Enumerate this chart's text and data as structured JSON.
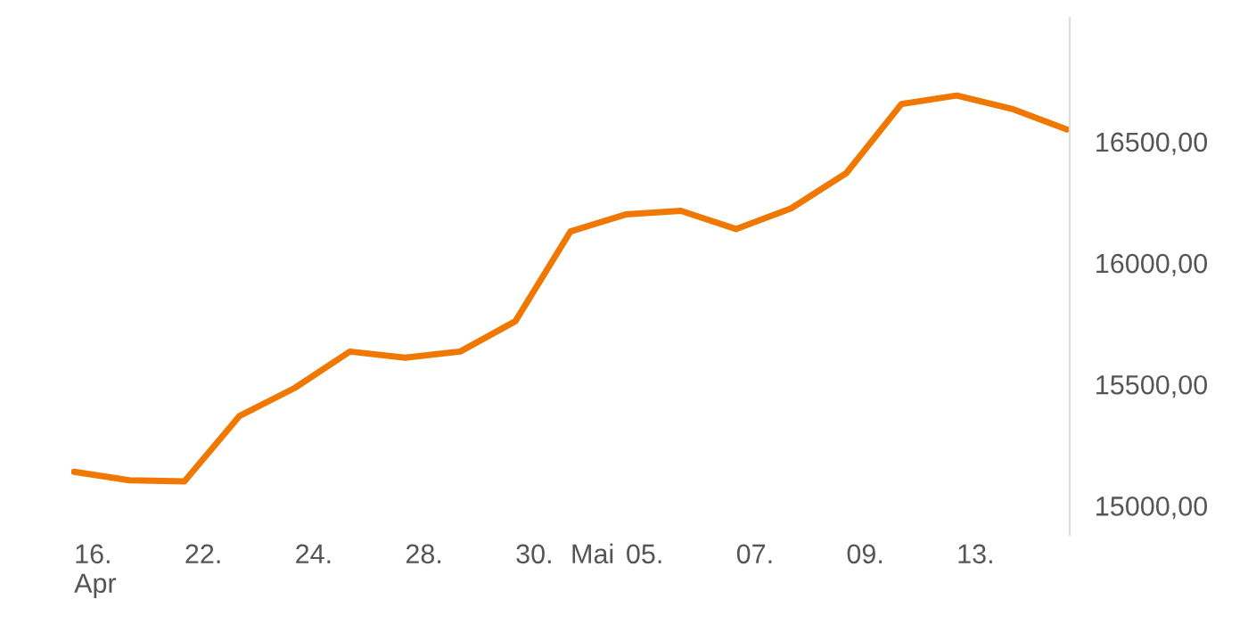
{
  "chart_data": {
    "type": "line",
    "categories": [
      "16.\nApr",
      null,
      "22.",
      null,
      "24.",
      null,
      "28.",
      null,
      "30.",
      "Mai",
      "05.",
      null,
      "07.",
      null,
      "09.",
      null,
      "13.",
      null,
      null
    ],
    "series": [
      {
        "color": "#f07800",
        "values": [
          15140,
          15105,
          15100,
          15370,
          15485,
          15635,
          15610,
          15635,
          15760,
          16130,
          16200,
          16215,
          16140,
          16225,
          16370,
          16655,
          16690,
          16635,
          16550
        ]
      }
    ],
    "ylim": [
      14880,
      17010
    ],
    "yticks": [
      {
        "value": 15000,
        "label": "15000,00"
      },
      {
        "value": 15500,
        "label": "15500,00"
      },
      {
        "value": 16000,
        "label": "16000,00"
      },
      {
        "value": 16500,
        "label": "16500,00"
      }
    ],
    "grid": false,
    "legend": false,
    "marker": "none",
    "line_style": "solid"
  }
}
